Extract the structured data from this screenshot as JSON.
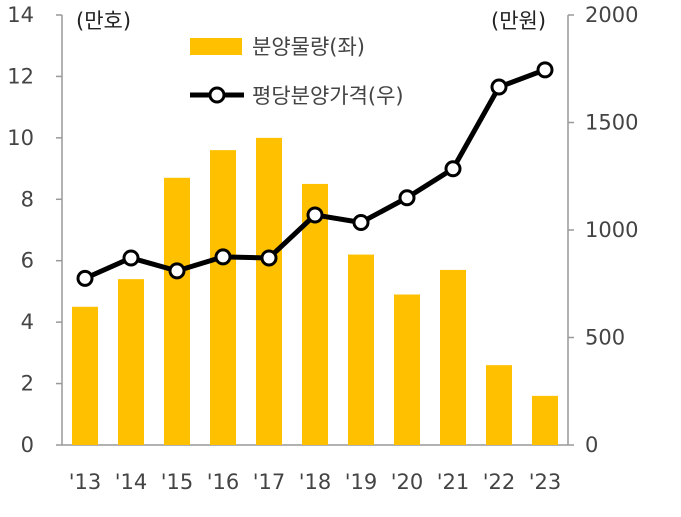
{
  "chart_data": {
    "type": "bar",
    "categories": [
      "'13",
      "'14",
      "'15",
      "'16",
      "'17",
      "'18",
      "'19",
      "'20",
      "'21",
      "'22",
      "'23"
    ],
    "series": [
      {
        "name": "분양물량(좌)",
        "type": "bar",
        "axis": "left",
        "color": "#FFC000",
        "values": [
          4.5,
          5.4,
          8.7,
          9.6,
          10.0,
          8.5,
          6.2,
          4.9,
          5.7,
          2.6,
          1.6
        ]
      },
      {
        "name": "평당분양가격(우)",
        "type": "line",
        "axis": "right",
        "color": "#000000",
        "values": [
          775,
          870,
          810,
          875,
          870,
          1070,
          1035,
          1150,
          1285,
          1665,
          1745
        ]
      }
    ],
    "y_left": {
      "unit": "(만호)",
      "ylim": [
        0,
        14
      ],
      "ticks": [
        0,
        2,
        4,
        6,
        8,
        10,
        12,
        14
      ]
    },
    "y_right": {
      "unit": "(만원)",
      "ylim": [
        0,
        2000
      ],
      "ticks": [
        0,
        500,
        1000,
        1500,
        2000
      ]
    },
    "legend": {
      "placement": "top-center"
    },
    "grid": false
  }
}
